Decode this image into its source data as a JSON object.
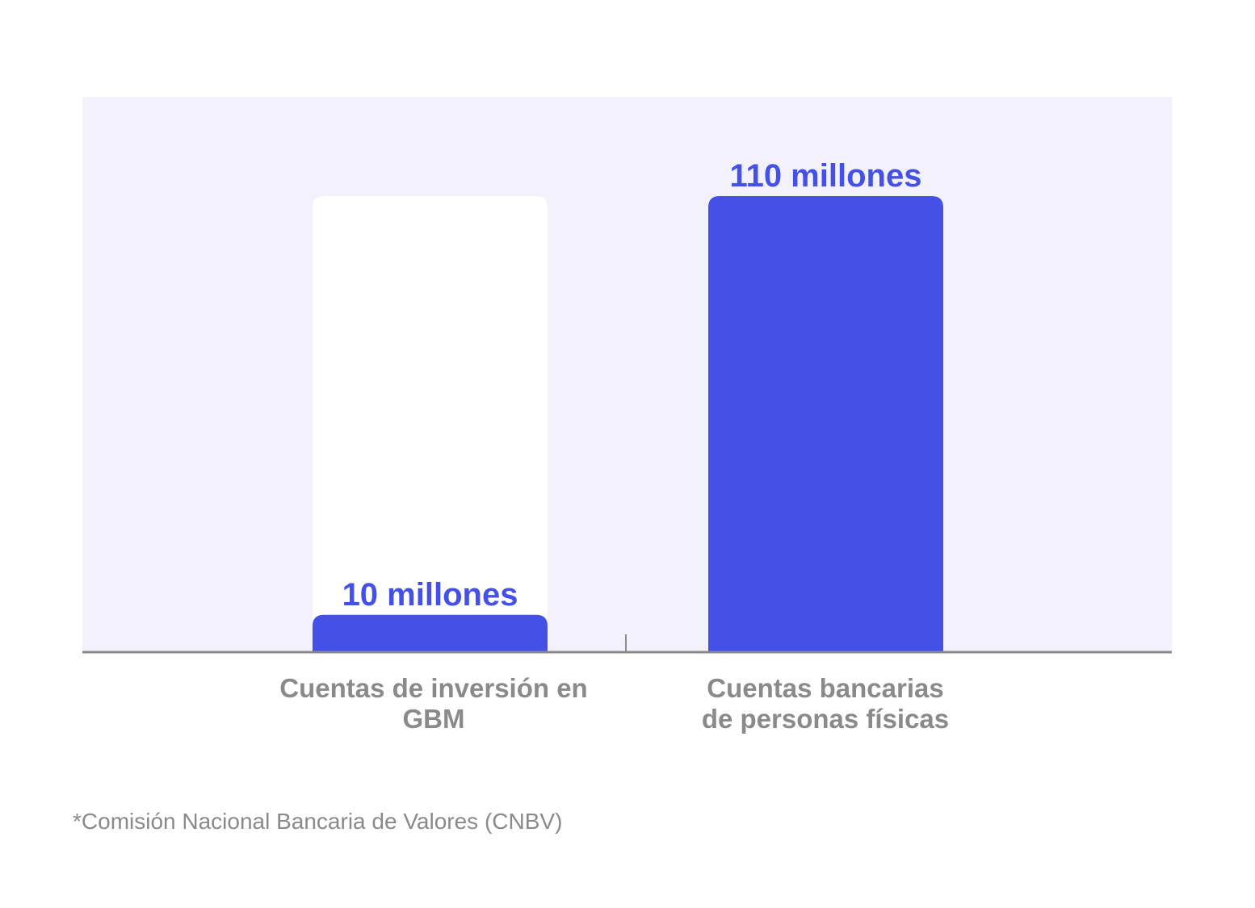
{
  "chart_data": {
    "type": "bar",
    "categories": [
      "Cuentas de inversión en GBM",
      "Cuentas bancarias de personas físicas"
    ],
    "category_lines": [
      [
        "Cuentas de inversión en",
        "GBM"
      ],
      [
        "Cuentas bancarias",
        "de personas físicas"
      ]
    ],
    "values": [
      10,
      110
    ],
    "data_labels": [
      "10 millones",
      "110 millones"
    ],
    "units": "millones",
    "ylim": [
      0,
      110
    ],
    "grid": false,
    "colors": {
      "bar": "#4450E6",
      "plot_bg": "#F3F2FC",
      "track": "#FFFFFF",
      "axis": "#8A8A8A",
      "label": "#4450E6"
    }
  },
  "footnote": "*Comisión Nacional Bancaria de Valores (CNBV)"
}
